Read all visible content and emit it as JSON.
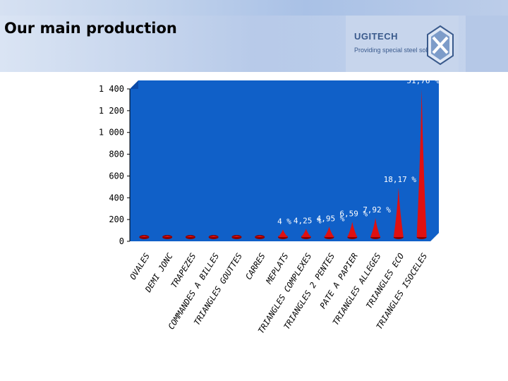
{
  "page": {
    "title": "Our main production"
  },
  "brand": {
    "name": "UGITECH",
    "tagline": "Providing special steel solutions"
  },
  "colors": {
    "plot_bg": "#1060c8",
    "marker": "#e01010",
    "banner": "#b9cbe9"
  },
  "chart_data": {
    "type": "bar",
    "marker_shape": "cone",
    "title": "",
    "xlabel": "",
    "ylabel": "",
    "ylim": [
      0,
      1400
    ],
    "yticks": [
      0,
      200,
      400,
      600,
      800,
      1000,
      1200,
      1400
    ],
    "ytick_labels": [
      "0",
      "200",
      "400",
      "600",
      "800",
      "1 000",
      "1 200",
      "1 400"
    ],
    "grid": false,
    "legend": "none",
    "categories": [
      "OVALES",
      "DEMI JONC",
      "TRAPEZES",
      "COMMANDES A BILLES",
      "TRIANGLES GOUTTES",
      "CARRES",
      "MEPLATS",
      "TRIANGLES COMPLEXES",
      "TRIANGLES 2 PENTES",
      "PATE A PAPIER",
      "TRIANGLES ALLEGES",
      "TRIANGLES ECO",
      "TRIANGLES ISOCELES"
    ],
    "values": [
      3,
      3,
      3,
      3,
      3,
      5,
      108,
      115,
      134,
      178,
      214,
      491,
      1400
    ],
    "data_labels": [
      "",
      "",
      "",
      "",
      "",
      "",
      "4 %",
      "4,25 %",
      "4,95 %",
      "6,59 %",
      "7,92 %",
      "18,17 %",
      "51,76 %"
    ]
  }
}
